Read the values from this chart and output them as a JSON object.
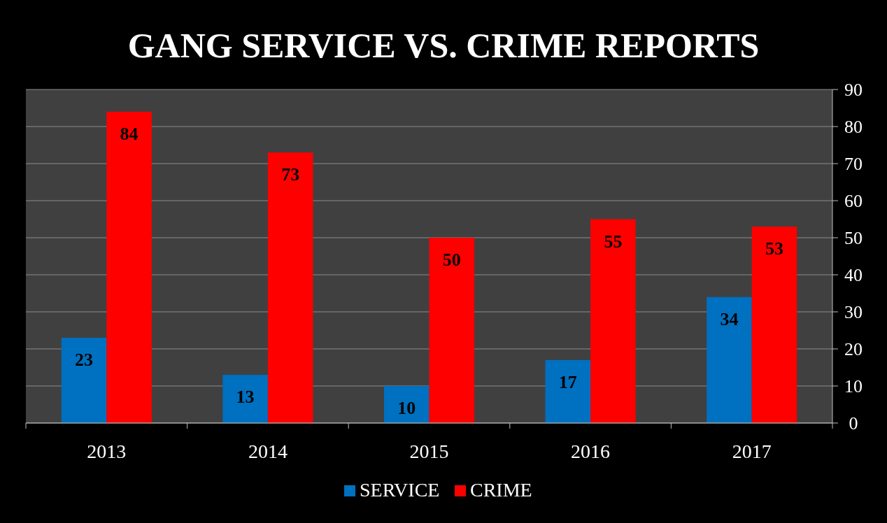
{
  "chart_data": {
    "type": "bar",
    "title": "GANG SERVICE VS. CRIME REPORTS",
    "categories": [
      "2013",
      "2014",
      "2015",
      "2016",
      "2017"
    ],
    "series": [
      {
        "name": "SERVICE",
        "color": "#0070c0",
        "values": [
          23,
          13,
          10,
          17,
          34
        ]
      },
      {
        "name": "CRIME",
        "color": "#ff0000",
        "values": [
          84,
          73,
          50,
          55,
          53
        ]
      }
    ],
    "ylim": [
      0,
      90
    ],
    "yticks": [
      0,
      10,
      20,
      30,
      40,
      50,
      60,
      70,
      80,
      90
    ],
    "grid": "y",
    "legend": "bottom",
    "data_labels": true
  }
}
